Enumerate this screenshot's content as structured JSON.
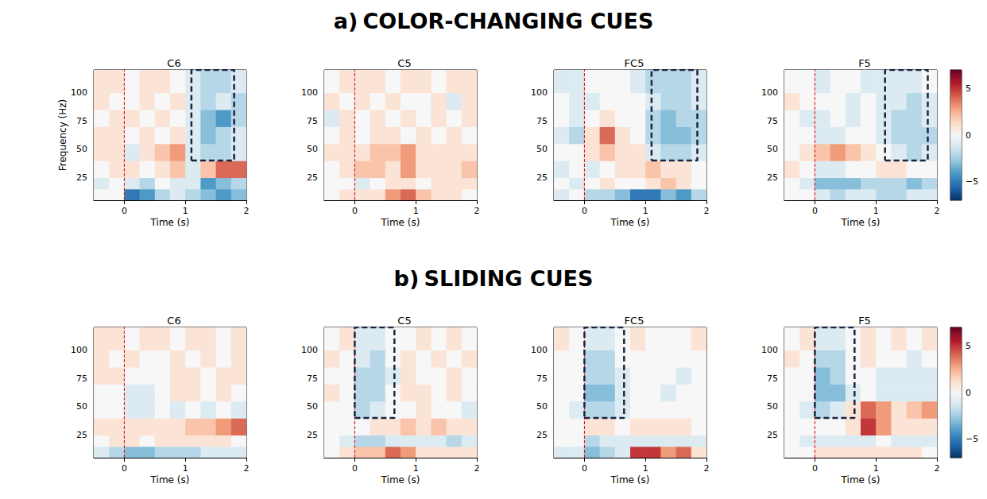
{
  "chart_data": [
    {
      "type": "heatmap",
      "title": "a) COLOR-CHANGING CUES",
      "xlabel": "Time (s)",
      "ylabel": "Frequency (Hz)",
      "xlim": [
        -0.5,
        2
      ],
      "xticks": [
        0,
        1,
        2
      ],
      "ylim": [
        5,
        120
      ],
      "yticks": [
        25,
        50,
        75,
        100
      ],
      "time_bins": [
        -0.5,
        -0.25,
        0,
        0.25,
        0.5,
        0.75,
        1,
        1.25,
        1.5,
        1.75,
        2
      ],
      "freq_bins": [
        5,
        15,
        25,
        40,
        55,
        70,
        85,
        100,
        120
      ],
      "onset": 0,
      "colorbar": {
        "range": [
          -7,
          7
        ],
        "ticks": [
          {
            "value": -5,
            "label": "−5"
          },
          0,
          5
        ]
      },
      "panels": [
        {
          "title": "C6",
          "box": {
            "x": [
              1.1,
              1.8
            ],
            "y": [
              40,
              120
            ]
          },
          "cells": [
            [
              0,
              0,
              -5,
              -4,
              -2,
              -1,
              -2,
              -3,
              -4,
              -3
            ],
            [
              -1,
              0,
              -1,
              -2,
              0,
              -1,
              -1,
              -4,
              -3,
              -2
            ],
            [
              0,
              1,
              1,
              0,
              1,
              2,
              -1,
              2,
              4,
              4
            ],
            [
              1,
              1,
              -1,
              1,
              2,
              3,
              -1,
              -2,
              -2,
              -1
            ],
            [
              1,
              1,
              0,
              1,
              0,
              1,
              -1,
              -3,
              -2,
              -1
            ],
            [
              0,
              1,
              1,
              0,
              1,
              0,
              -1,
              -3,
              -4,
              -2
            ],
            [
              1,
              0,
              0,
              1,
              0,
              1,
              -1,
              -2,
              -1,
              -2
            ],
            [
              1,
              1,
              0,
              1,
              1,
              0,
              -1,
              -2,
              -2,
              -1
            ]
          ]
        },
        {
          "title": "C5",
          "cells": [
            [
              0,
              1,
              1,
              1,
              3,
              4,
              2,
              1,
              1,
              0
            ],
            [
              0,
              0,
              -1,
              0,
              1,
              1,
              0,
              1,
              1,
              1
            ],
            [
              0,
              1,
              2,
              2,
              1,
              3,
              1,
              1,
              1,
              2
            ],
            [
              1,
              1,
              1,
              2,
              2,
              3,
              1,
              1,
              1,
              1
            ],
            [
              0,
              1,
              0,
              1,
              1,
              0,
              1,
              0,
              1,
              0
            ],
            [
              -1,
              1,
              0,
              1,
              0,
              1,
              0,
              1,
              0,
              1
            ],
            [
              1,
              0,
              1,
              0,
              1,
              0,
              0,
              1,
              -1,
              1
            ],
            [
              0,
              1,
              1,
              1,
              0,
              1,
              1,
              0,
              1,
              1
            ]
          ]
        },
        {
          "title": "FC5",
          "box": {
            "x": [
              1.1,
              1.85
            ],
            "y": [
              40,
              120
            ]
          },
          "cells": [
            [
              -1,
              0,
              -2,
              -2,
              -3,
              -5,
              -5,
              -3,
              -4,
              -2
            ],
            [
              0,
              -1,
              0,
              1,
              0,
              0,
              1,
              2,
              1,
              0
            ],
            [
              -1,
              0,
              -1,
              0,
              1,
              1,
              2,
              1,
              1,
              0
            ],
            [
              0,
              0,
              1,
              2,
              1,
              1,
              -1,
              -2,
              -2,
              -1
            ],
            [
              -1,
              -2,
              1,
              4,
              1,
              0,
              -2,
              -3,
              -3,
              -2
            ],
            [
              0,
              -1,
              0,
              1,
              0,
              0,
              -2,
              -3,
              -2,
              -2
            ],
            [
              0,
              -1,
              -1,
              0,
              0,
              0,
              -1,
              -2,
              -2,
              -1
            ],
            [
              -1,
              -1,
              0,
              0,
              0,
              -1,
              -2,
              -2,
              -2,
              -1
            ]
          ]
        },
        {
          "title": "F5",
          "box": {
            "x": [
              1.15,
              1.85
            ],
            "y": [
              40,
              120
            ]
          },
          "cells": [
            [
              0,
              0,
              -1,
              -2,
              -1,
              -1,
              -2,
              -2,
              -1,
              -1
            ],
            [
              0,
              -1,
              -3,
              -3,
              -3,
              -2,
              -2,
              -2,
              -3,
              -2
            ],
            [
              1,
              0,
              -1,
              -1,
              0,
              0,
              1,
              1,
              0,
              0
            ],
            [
              0,
              1,
              2,
              3,
              2,
              1,
              0,
              -1,
              -2,
              -1
            ],
            [
              0,
              0,
              -1,
              -1,
              0,
              0,
              -1,
              -2,
              -2,
              -2
            ],
            [
              0,
              -1,
              -1,
              0,
              -1,
              0,
              -1,
              -2,
              -2,
              -1
            ],
            [
              1,
              0,
              0,
              0,
              -1,
              0,
              -1,
              -1,
              -2,
              -1
            ],
            [
              0,
              0,
              -1,
              0,
              0,
              -1,
              -1,
              -1,
              -1,
              0
            ]
          ]
        }
      ]
    },
    {
      "type": "heatmap",
      "title": "b) SLIDING CUES",
      "xlabel": "Time (s)",
      "xlim": [
        -0.5,
        2
      ],
      "xticks": [
        0,
        1,
        2
      ],
      "ylim": [
        5,
        120
      ],
      "yticks": [
        25,
        50,
        75,
        100
      ],
      "time_bins": [
        -0.5,
        -0.25,
        0,
        0.25,
        0.5,
        0.75,
        1,
        1.25,
        1.5,
        1.75,
        2
      ],
      "freq_bins": [
        5,
        15,
        25,
        40,
        55,
        70,
        85,
        100,
        120
      ],
      "onset": 0,
      "colorbar": {
        "range": [
          -7,
          7
        ],
        "ticks": [
          {
            "value": -5,
            "label": "−5"
          },
          0,
          5
        ]
      },
      "panels": [
        {
          "title": "C6",
          "cells": [
            [
              -1,
              -2,
              -3,
              -3,
              -2,
              -2,
              -2,
              -1,
              -1,
              -1
            ],
            [
              0,
              1,
              1,
              0,
              1,
              1,
              1,
              1,
              1,
              0
            ],
            [
              1,
              1,
              1,
              1,
              1,
              1,
              2,
              2,
              3,
              4
            ],
            [
              0,
              0,
              -1,
              -1,
              0,
              -1,
              0,
              -1,
              0,
              -1
            ],
            [
              0,
              0,
              -1,
              -1,
              0,
              1,
              1,
              0,
              1,
              0
            ],
            [
              1,
              1,
              0,
              0,
              0,
              1,
              1,
              0,
              1,
              1
            ],
            [
              1,
              0,
              1,
              0,
              0,
              1,
              0,
              1,
              0,
              1
            ],
            [
              1,
              1,
              0,
              1,
              1,
              0,
              1,
              1,
              0,
              1
            ]
          ]
        },
        {
          "title": "C5",
          "box": {
            "x": [
              0,
              0.65
            ],
            "y": [
              40,
              120
            ]
          },
          "cells": [
            [
              0,
              1,
              2,
              2,
              4,
              3,
              1,
              1,
              1,
              1
            ],
            [
              0,
              -1,
              -2,
              -2,
              -1,
              -1,
              -1,
              -1,
              -2,
              -1
            ],
            [
              0,
              0,
              0,
              1,
              1,
              2,
              1,
              2,
              1,
              1
            ],
            [
              0,
              0,
              -2,
              -1,
              0,
              0,
              1,
              0,
              0,
              -1
            ],
            [
              1,
              0,
              -2,
              -2,
              0,
              1,
              1,
              0,
              1,
              0
            ],
            [
              0,
              0,
              -2,
              -2,
              -1,
              1,
              0,
              0,
              1,
              0
            ],
            [
              1,
              0,
              -1,
              -2,
              0,
              1,
              0,
              1,
              0,
              1
            ],
            [
              0,
              1,
              -1,
              -1,
              0,
              0,
              1,
              0,
              1,
              0
            ]
          ]
        },
        {
          "title": "FC5",
          "box": {
            "x": [
              0,
              0.65
            ],
            "y": [
              40,
              120
            ]
          },
          "cells": [
            [
              -1,
              -1,
              -3,
              -2,
              -1,
              5,
              5,
              3,
              4,
              1
            ],
            [
              0,
              0,
              -2,
              -1,
              -1,
              -1,
              -1,
              -1,
              -1,
              -1
            ],
            [
              0,
              0,
              1,
              1,
              0,
              1,
              1,
              1,
              1,
              0
            ],
            [
              0,
              -1,
              -2,
              -2,
              -1,
              0,
              0,
              0,
              0,
              0
            ],
            [
              0,
              0,
              -3,
              -3,
              -1,
              0,
              0,
              -1,
              0,
              0
            ],
            [
              0,
              0,
              -2,
              -2,
              -1,
              0,
              0,
              0,
              -1,
              0
            ],
            [
              0,
              0,
              -2,
              -2,
              0,
              0,
              0,
              0,
              0,
              0
            ],
            [
              1,
              0,
              -1,
              -1,
              0,
              1,
              0,
              0,
              0,
              1
            ]
          ]
        },
        {
          "title": "F5",
          "box": {
            "x": [
              0,
              0.65
            ],
            "y": [
              40,
              120
            ]
          },
          "cells": [
            [
              0,
              0,
              1,
              1,
              1,
              1,
              1,
              1,
              1,
              0
            ],
            [
              0,
              -1,
              -1,
              -1,
              -1,
              -1,
              0,
              -1,
              -1,
              -1
            ],
            [
              0,
              0,
              0,
              0,
              1,
              5,
              3,
              1,
              1,
              1
            ],
            [
              0,
              -1,
              -2,
              -1,
              1,
              4,
              3,
              1,
              2,
              3
            ],
            [
              0,
              0,
              -3,
              -3,
              -1,
              0,
              -1,
              -1,
              -1,
              -1
            ],
            [
              0,
              0,
              -3,
              -2,
              0,
              0,
              -1,
              -1,
              -1,
              -1
            ],
            [
              1,
              0,
              -2,
              -2,
              0,
              1,
              0,
              0,
              -1,
              0
            ],
            [
              0,
              1,
              -1,
              -1,
              0,
              1,
              0,
              1,
              0,
              1
            ]
          ]
        }
      ]
    }
  ]
}
